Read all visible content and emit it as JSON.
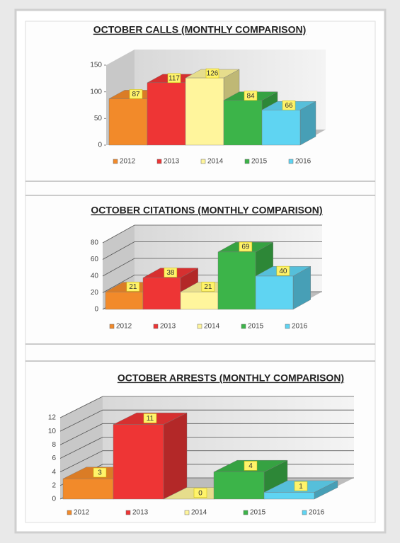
{
  "chart_data": [
    {
      "type": "bar3d",
      "title": "OCTOBER CALLS (MONTHLY COMPARISON)",
      "categories": [
        "2012",
        "2013",
        "2014",
        "2015",
        "2016"
      ],
      "values": [
        87,
        117,
        126,
        84,
        66
      ],
      "colors": [
        "#f28a2a",
        "#ee3535",
        "#fff59c",
        "#3cb449",
        "#5fd4f2"
      ],
      "ylim": [
        0,
        150
      ],
      "yticks": [
        0,
        50,
        100,
        150
      ],
      "grid": false
    },
    {
      "type": "bar3d",
      "title": "OCTOBER CITATIONS (MONTHLY COMPARISON)",
      "categories": [
        "2012",
        "2013",
        "2014",
        "2015",
        "2016"
      ],
      "values": [
        21,
        38,
        21,
        69,
        40
      ],
      "colors": [
        "#f28a2a",
        "#ee3535",
        "#fff59c",
        "#3cb449",
        "#5fd4f2"
      ],
      "ylim": [
        0,
        80
      ],
      "yticks": [
        0,
        20,
        40,
        60,
        80
      ],
      "grid": true
    },
    {
      "type": "bar3d",
      "title": "OCTOBER ARRESTS (MONTHLY COMPARISON)",
      "categories": [
        "2012",
        "2013",
        "2014",
        "2015",
        "2016"
      ],
      "values": [
        3,
        11,
        0,
        4,
        1
      ],
      "colors": [
        "#f28a2a",
        "#ee3535",
        "#fff59c",
        "#3cb449",
        "#5fd4f2"
      ],
      "ylim": [
        0,
        12
      ],
      "yticks": [
        0,
        2,
        4,
        6,
        8,
        10,
        12
      ],
      "grid": true
    }
  ]
}
